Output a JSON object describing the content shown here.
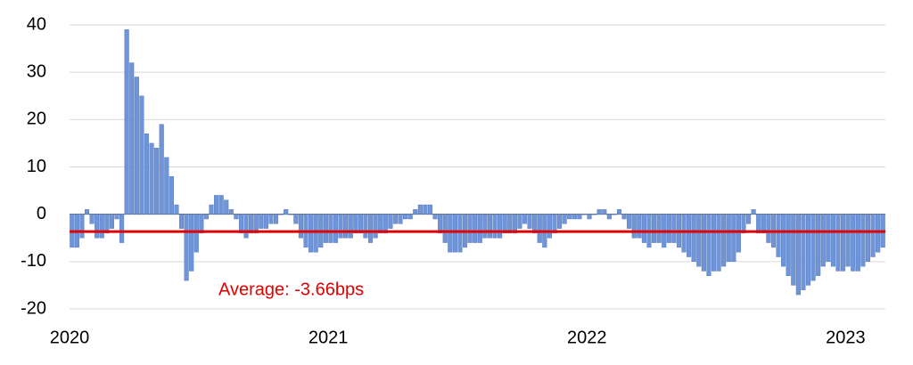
{
  "chart_data": {
    "type": "bar",
    "categories": [
      "2020",
      null,
      null,
      null,
      null,
      null,
      null,
      null,
      null,
      null,
      null,
      null,
      null,
      null,
      null,
      null,
      null,
      null,
      null,
      null,
      null,
      null,
      null,
      null,
      null,
      null,
      null,
      null,
      null,
      null,
      null,
      null,
      null,
      null,
      null,
      null,
      null,
      null,
      null,
      null,
      null,
      null,
      null,
      null,
      null,
      null,
      null,
      null,
      null,
      null,
      null,
      null,
      "2021",
      null,
      null,
      null,
      null,
      null,
      null,
      null,
      null,
      null,
      null,
      null,
      null,
      null,
      null,
      null,
      null,
      null,
      null,
      null,
      null,
      null,
      null,
      null,
      null,
      null,
      null,
      null,
      null,
      null,
      null,
      null,
      null,
      null,
      null,
      null,
      null,
      null,
      null,
      null,
      null,
      null,
      null,
      null,
      null,
      null,
      null,
      null,
      null,
      null,
      null,
      null,
      "2022",
      null,
      null,
      null,
      null,
      null,
      null,
      null,
      null,
      null,
      null,
      null,
      null,
      null,
      null,
      null,
      null,
      null,
      null,
      null,
      null,
      null,
      null,
      null,
      null,
      null,
      null,
      null,
      null,
      null,
      null,
      null,
      null,
      null,
      null,
      null,
      null,
      null,
      null,
      null,
      null,
      null,
      null,
      null,
      null,
      null,
      null,
      null,
      null,
      null,
      null,
      null,
      "2023",
      null,
      null,
      null,
      null,
      null,
      null,
      null
    ],
    "values": [
      -7,
      -7,
      -5,
      1,
      -2,
      -5,
      -5,
      -4,
      -3,
      -1,
      -6,
      39,
      32,
      29,
      25,
      17,
      15,
      14,
      19,
      12,
      8,
      2,
      -3,
      -14,
      -12,
      -8,
      -4,
      -1,
      2,
      4,
      4,
      3,
      1,
      -1,
      -4,
      -5,
      -4,
      -4,
      -3,
      -3,
      -2,
      -2,
      0,
      1,
      0,
      -2,
      -5,
      -7,
      -8,
      -8,
      -7,
      -6,
      -6,
      -6,
      -5,
      -5,
      -5,
      -4,
      -4,
      -5,
      -6,
      -5,
      -4,
      -4,
      -3,
      -2,
      -2,
      -1,
      -1,
      1,
      2,
      2,
      2,
      -1,
      -4,
      -6,
      -8,
      -8,
      -8,
      -7,
      -6,
      -6,
      -6,
      -5,
      -5,
      -5,
      -5,
      -4,
      -4,
      -4,
      -3,
      -2,
      -3,
      -4,
      -6,
      -7,
      -5,
      -4,
      -3,
      -2,
      -1,
      -1,
      -1,
      0,
      -1,
      0,
      1,
      1,
      -1,
      0,
      1,
      -1,
      -3,
      -5,
      -5,
      -6,
      -7,
      -6,
      -6,
      -7,
      -6,
      -6,
      -7,
      -8,
      -9,
      -10,
      -11,
      -12,
      -13,
      -12,
      -12,
      -11,
      -10,
      -10,
      -8,
      -4,
      -2,
      1,
      -4,
      -4,
      -6,
      -7,
      -9,
      -11,
      -13,
      -15,
      -17,
      -16,
      -15,
      -14,
      -13,
      -11,
      -10,
      -11,
      -12,
      -12,
      -11,
      -12,
      -12,
      -11,
      -10,
      -9,
      -8,
      -7
    ],
    "color": "#6f95d8",
    "ylim": [
      -20,
      40
    ],
    "yticks": [
      -20,
      -10,
      0,
      10,
      20,
      30,
      40
    ],
    "grid": true,
    "average": -3.66,
    "average_color": "#e00000",
    "annotation": "Average: -3.66bps"
  }
}
